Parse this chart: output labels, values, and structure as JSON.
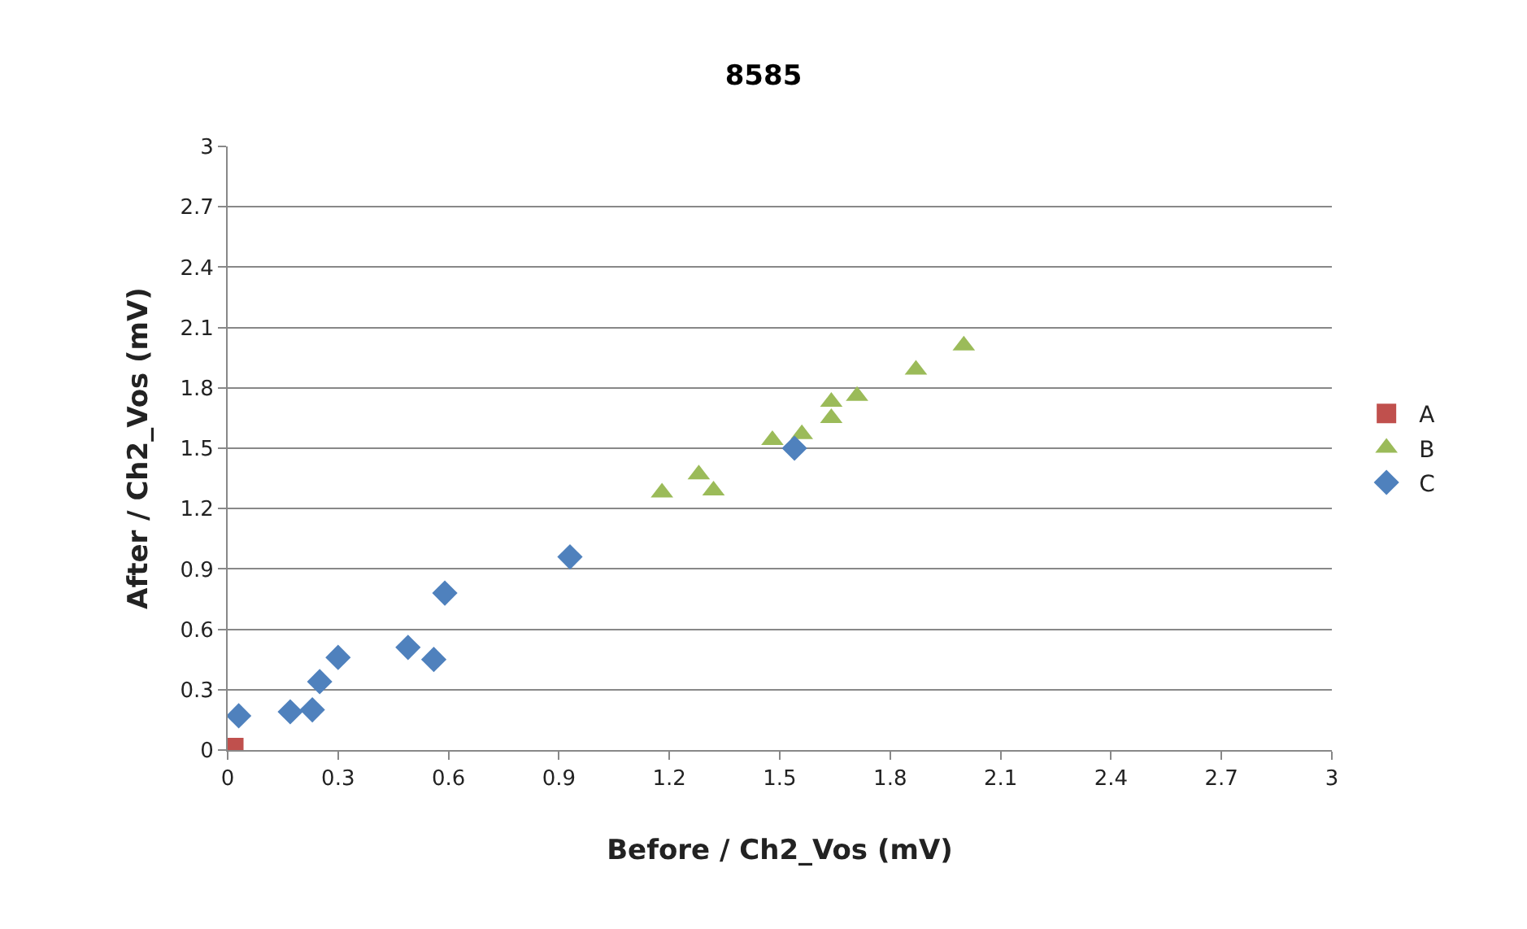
{
  "chart_data": {
    "type": "scatter",
    "title": "8585",
    "xlabel": "Before / Ch2_Vos (mV)",
    "ylabel": "After / Ch2_Vos (mV)",
    "xlim": [
      0,
      3
    ],
    "ylim": [
      0,
      3
    ],
    "xticks": [
      0,
      0.3,
      0.6,
      0.9,
      1.2,
      1.5,
      1.8,
      2.1,
      2.4,
      2.7,
      3
    ],
    "yticks": [
      0,
      0.3,
      0.6,
      0.9,
      1.2,
      1.5,
      1.8,
      2.1,
      2.4,
      2.7,
      3
    ],
    "grid": "y",
    "legend": "right",
    "series": [
      {
        "name": "A",
        "color": "#c0504d",
        "marker": "square",
        "x": [
          0.01
        ],
        "values": [
          0
        ]
      },
      {
        "name": "B",
        "color": "#9bbb59",
        "marker": "triangle",
        "x": [
          1.18,
          1.28,
          1.32,
          1.48,
          1.56,
          1.64,
          1.64,
          1.71,
          1.87,
          2.0
        ],
        "values": [
          1.28,
          1.37,
          1.29,
          1.54,
          1.57,
          1.73,
          1.65,
          1.76,
          1.89,
          2.01
        ]
      },
      {
        "name": "C",
        "color": "#4f81bd",
        "marker": "diamond",
        "x": [
          0.03,
          0.17,
          0.23,
          0.25,
          0.3,
          0.49,
          0.56,
          0.59,
          0.93,
          1.54
        ],
        "values": [
          0.17,
          0.19,
          0.2,
          0.34,
          0.46,
          0.51,
          0.45,
          0.78,
          0.96,
          1.5
        ]
      }
    ]
  }
}
